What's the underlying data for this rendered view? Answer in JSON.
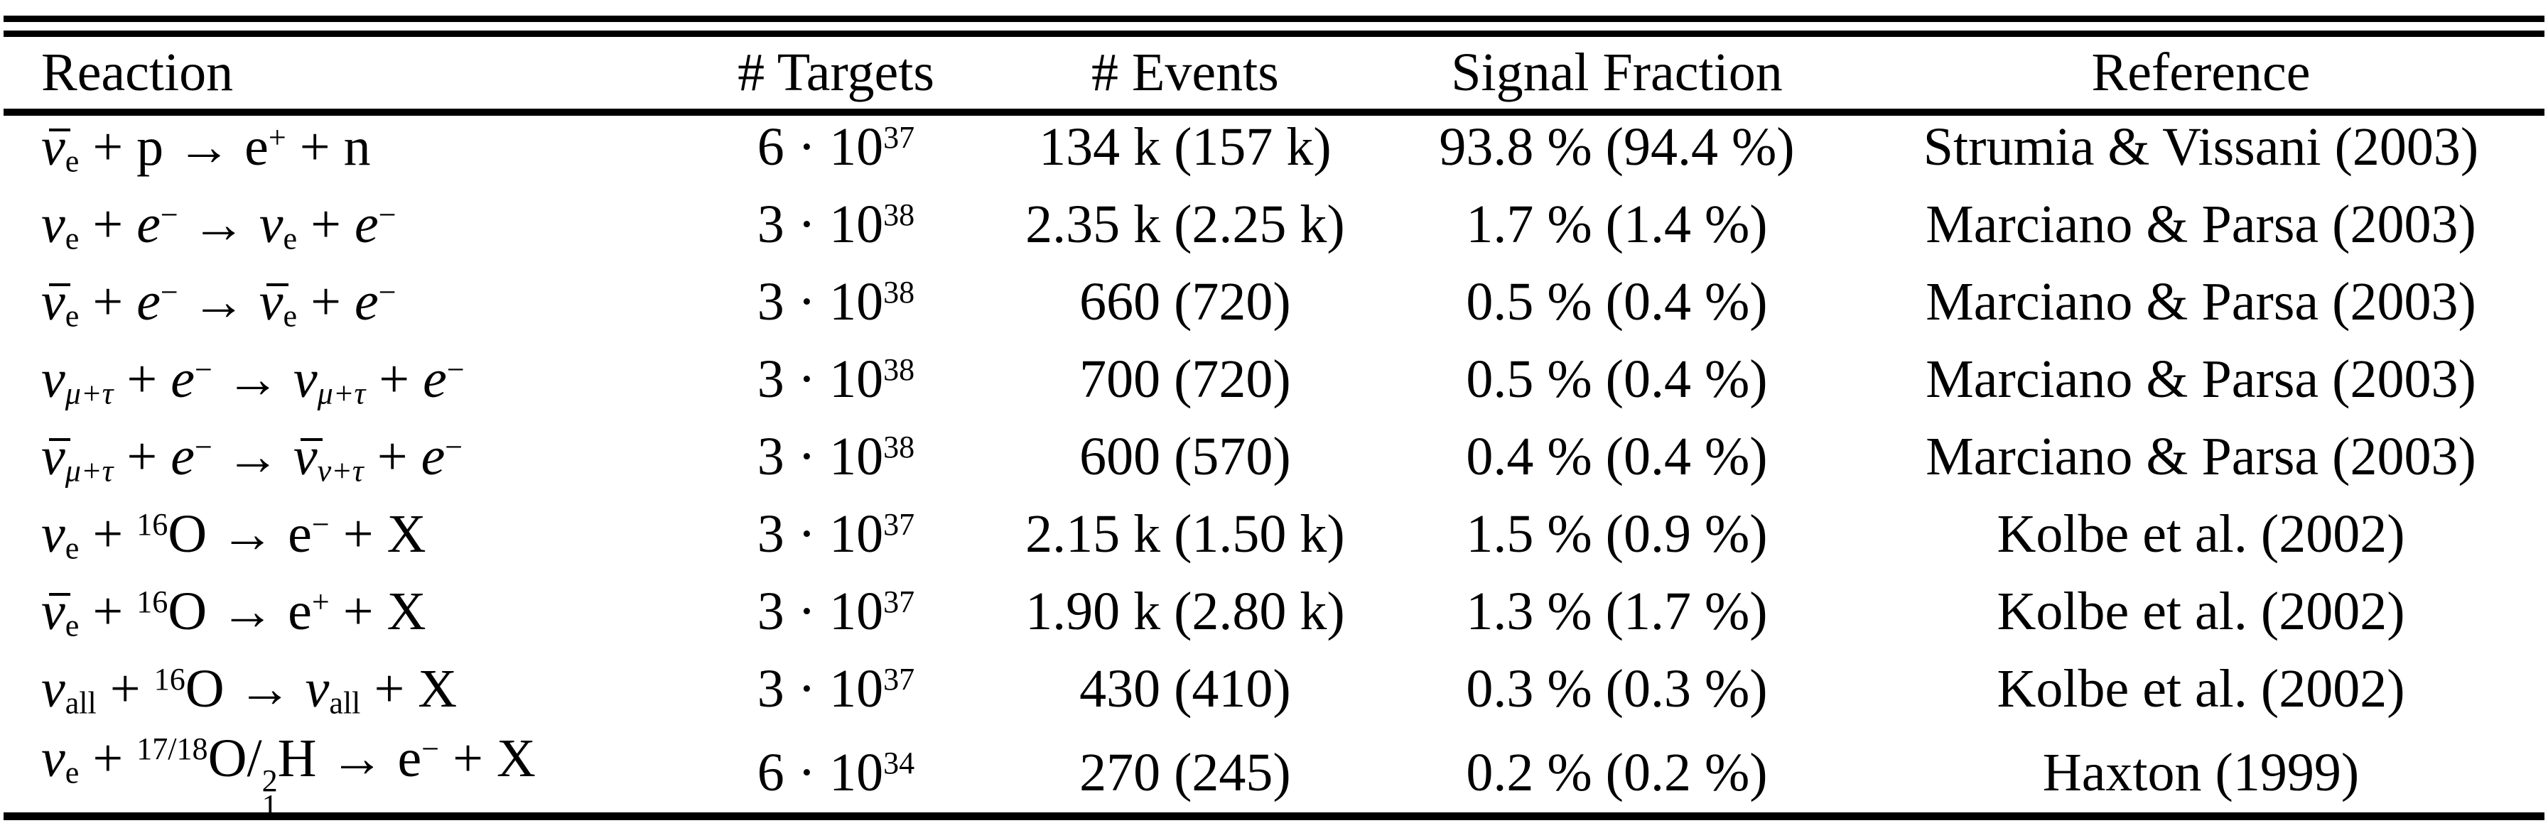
{
  "page": {
    "background_color": "#ffffff",
    "text_color": "#000000",
    "rule_color": "#000000"
  },
  "table": {
    "headers": [
      "Reaction",
      "# Targets",
      "# Events",
      "Signal Fraction",
      "Reference"
    ],
    "rows": [
      {
        "reaction": [
          {
            "t": "ν",
            "it": true,
            "bar": true
          },
          {
            "t": "e",
            "sub": true
          },
          {
            "t": " + p → e"
          },
          {
            "t": "+",
            "sup": true
          },
          {
            "t": " + n"
          }
        ],
        "targets": [
          {
            "t": "6 · 10"
          },
          {
            "t": "37",
            "sup": true
          }
        ],
        "events": "134 k (157 k)",
        "signal": "93.8 % (94.4 %)",
        "reference": "Strumia & Vissani (2003)"
      },
      {
        "reaction": [
          {
            "t": "ν",
            "it": true
          },
          {
            "t": "e",
            "sub": true
          },
          {
            "t": " + "
          },
          {
            "t": "e",
            "it": true
          },
          {
            "t": "−",
            "sup": true
          },
          {
            "t": " → "
          },
          {
            "t": "ν",
            "it": true
          },
          {
            "t": "e",
            "sub": true
          },
          {
            "t": " + "
          },
          {
            "t": "e",
            "it": true
          },
          {
            "t": "−",
            "sup": true
          }
        ],
        "targets": [
          {
            "t": "3 · 10"
          },
          {
            "t": "38",
            "sup": true
          }
        ],
        "events": "2.35 k (2.25 k)",
        "signal": "1.7 % (1.4 %)",
        "reference": "Marciano & Parsa (2003)"
      },
      {
        "reaction": [
          {
            "t": "ν",
            "it": true,
            "bar": true
          },
          {
            "t": "e",
            "sub": true
          },
          {
            "t": " + "
          },
          {
            "t": "e",
            "it": true
          },
          {
            "t": "−",
            "sup": true
          },
          {
            "t": " → "
          },
          {
            "t": "ν",
            "it": true,
            "bar": true
          },
          {
            "t": "e",
            "sub": true
          },
          {
            "t": " + "
          },
          {
            "t": "e",
            "it": true
          },
          {
            "t": "−",
            "sup": true
          }
        ],
        "targets": [
          {
            "t": "3 · 10"
          },
          {
            "t": "38",
            "sup": true
          }
        ],
        "events": "660 (720)",
        "signal": "0.5 % (0.4 %)",
        "reference": "Marciano & Parsa (2003)"
      },
      {
        "reaction": [
          {
            "t": "ν",
            "it": true
          },
          {
            "t": "μ+τ",
            "sub": true,
            "it": true
          },
          {
            "t": " + "
          },
          {
            "t": "e",
            "it": true
          },
          {
            "t": "−",
            "sup": true
          },
          {
            "t": " → "
          },
          {
            "t": "ν",
            "it": true
          },
          {
            "t": "μ+τ",
            "sub": true,
            "it": true
          },
          {
            "t": " + "
          },
          {
            "t": "e",
            "it": true
          },
          {
            "t": "−",
            "sup": true
          }
        ],
        "targets": [
          {
            "t": "3 · 10"
          },
          {
            "t": "38",
            "sup": true
          }
        ],
        "events": "700 (720)",
        "signal": "0.5 % (0.4 %)",
        "reference": "Marciano & Parsa (2003)"
      },
      {
        "reaction": [
          {
            "t": "ν",
            "it": true,
            "bar": true
          },
          {
            "t": "μ+τ",
            "sub": true,
            "it": true
          },
          {
            "t": " + "
          },
          {
            "t": "e",
            "it": true
          },
          {
            "t": "−",
            "sup": true
          },
          {
            "t": " → "
          },
          {
            "t": "ν",
            "it": true,
            "bar": true
          },
          {
            "t": "ν+τ",
            "sub": true,
            "it": true
          },
          {
            "t": " + "
          },
          {
            "t": "e",
            "it": true
          },
          {
            "t": "−",
            "sup": true
          }
        ],
        "targets": [
          {
            "t": "3 · 10"
          },
          {
            "t": "38",
            "sup": true
          }
        ],
        "events": "600 (570)",
        "signal": "0.4 % (0.4 %)",
        "reference": "Marciano & Parsa (2003)"
      },
      {
        "reaction": [
          {
            "t": "ν",
            "it": true
          },
          {
            "t": "e",
            "sub": true
          },
          {
            "t": " + "
          },
          {
            "t": "16",
            "sup": true
          },
          {
            "t": "O → e"
          },
          {
            "t": "−",
            "sup": true
          },
          {
            "t": " + X"
          }
        ],
        "targets": [
          {
            "t": "3 · 10"
          },
          {
            "t": "37",
            "sup": true
          }
        ],
        "events": "2.15 k (1.50 k)",
        "signal": "1.5 % (0.9 %)",
        "reference": "Kolbe et al. (2002)"
      },
      {
        "reaction": [
          {
            "t": "ν",
            "it": true,
            "bar": true
          },
          {
            "t": "e",
            "sub": true
          },
          {
            "t": " + "
          },
          {
            "t": "16",
            "sup": true
          },
          {
            "t": "O → e"
          },
          {
            "t": "+",
            "sup": true
          },
          {
            "t": " + X"
          }
        ],
        "targets": [
          {
            "t": "3 · 10"
          },
          {
            "t": "37",
            "sup": true
          }
        ],
        "events": "1.90 k (2.80 k)",
        "signal": "1.3 % (1.7 %)",
        "reference": "Kolbe et al. (2002)"
      },
      {
        "reaction": [
          {
            "t": "ν",
            "it": true
          },
          {
            "t": "all",
            "sub": true
          },
          {
            "t": " + "
          },
          {
            "t": "16",
            "sup": true
          },
          {
            "t": "O → "
          },
          {
            "t": "ν",
            "it": true
          },
          {
            "t": "all",
            "sub": true
          },
          {
            "t": " + X"
          }
        ],
        "targets": [
          {
            "t": "3 · 10"
          },
          {
            "t": "37",
            "sup": true
          }
        ],
        "events": "430 (410)",
        "signal": "0.3 % (0.3 %)",
        "reference": "Kolbe et al. (2002)"
      },
      {
        "reaction": [
          {
            "t": "ν",
            "it": true
          },
          {
            "t": "e",
            "sub": true
          },
          {
            "t": " + "
          },
          {
            "t": "17/18",
            "sup": true
          },
          {
            "t": "O/"
          },
          {
            "stack": [
              "2",
              "1"
            ]
          },
          {
            "t": "H → e"
          },
          {
            "t": "−",
            "sup": true
          },
          {
            "t": " + X"
          }
        ],
        "targets": [
          {
            "t": "6 · 10"
          },
          {
            "t": "34",
            "sup": true
          }
        ],
        "events": "270 (245)",
        "signal": "0.2 % (0.2 %)",
        "reference": "Haxton (1999)"
      }
    ]
  }
}
